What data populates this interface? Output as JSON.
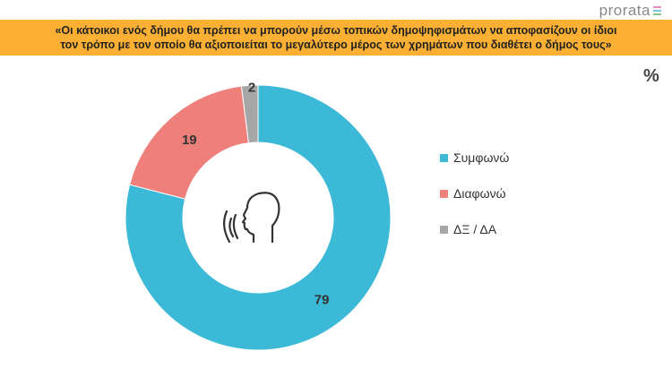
{
  "logo": "prorata",
  "banner": {
    "line1": "«Οι κάτοικοι ενός δήμου θα πρέπει να μπορούν μέσω τοπικών δημοψηφισμάτων να αποφασίζουν οι ίδιοι",
    "line2": "τον τρόπο με τον οποίο θα αξιοποιείται το μεγαλύτερο μέρος των χρημάτων που διαθέτει ο δήμος τους»"
  },
  "unit": "%",
  "chart_data": {
    "type": "pie",
    "donut": true,
    "title": "«Οι κάτοικοι ενός δήμου θα πρέπει να μπορούν μέσω τοπικών δημοψηφισμάτων να αποφασίζουν οι ίδιοι τον τρόπο με τον οποίο θα αξιοποιείται το μεγαλύτερο μέρος των χρημάτων που διαθέτει ο δήμος τους»",
    "categories": [
      "Συμφωνώ",
      "Διαφωνώ",
      "ΔΞ / ΔΑ"
    ],
    "values": [
      79,
      19,
      2
    ],
    "colors": [
      "#3BB9D6",
      "#EE7F7B",
      "#A6A6A6"
    ],
    "legend_position": "right",
    "unit": "%"
  }
}
